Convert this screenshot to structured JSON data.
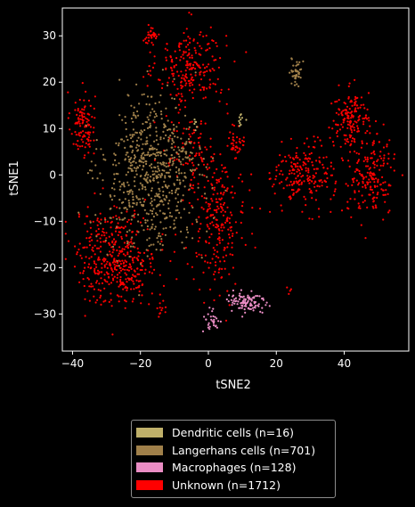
{
  "chart_data": {
    "type": "scatter",
    "xlabel": "tSNE2",
    "ylabel": "tSNE1",
    "xlim": [
      -43,
      59
    ],
    "ylim": [
      -38,
      36
    ],
    "xticks": [
      -40,
      -20,
      0,
      20,
      40
    ],
    "yticks": [
      -30,
      -20,
      -10,
      0,
      10,
      20,
      30
    ],
    "grid": false,
    "legend_position": "below",
    "series": [
      {
        "name": "Dendritic cells (n=16)",
        "color": "#bfb06a",
        "count": 16,
        "clusters": [
          {
            "center": [
              10,
              11.5
            ],
            "spread": [
              0.6,
              1.0
            ],
            "n": 10
          },
          {
            "center": [
              -4,
              10.5
            ],
            "spread": [
              0.8,
              0.8
            ],
            "n": 6
          }
        ]
      },
      {
        "name": "Langerhans cells (n=701)",
        "color": "#a0804a",
        "count": 701,
        "clusters": [
          {
            "center": [
              -17,
              0
            ],
            "spread": [
              7.0,
              8.0
            ],
            "n": 640
          },
          {
            "center": [
              26,
              22
            ],
            "spread": [
              0.8,
              1.6
            ],
            "n": 40
          },
          {
            "center": [
              -7,
              6
            ],
            "spread": [
              3.0,
              3.0
            ],
            "n": 21
          }
        ]
      },
      {
        "name": "Macrophages (n=128)",
        "color": "#ea8dc4",
        "count": 128,
        "clusters": [
          {
            "center": [
              11,
              -27.5
            ],
            "spread": [
              3.0,
              1.4
            ],
            "n": 100
          },
          {
            "center": [
              1,
              -31.5
            ],
            "spread": [
              1.3,
              1.4
            ],
            "n": 28
          }
        ]
      },
      {
        "name": "Unknown (n=1712)",
        "color": "#ff0000",
        "count": 1712,
        "clusters": [
          {
            "center": [
              -37,
              11
            ],
            "spread": [
              1.8,
              3.5
            ],
            "n": 110
          },
          {
            "center": [
              -5,
              23
            ],
            "spread": [
              5.0,
              4.5
            ],
            "n": 230
          },
          {
            "center": [
              -17,
              30
            ],
            "spread": [
              1.3,
              0.9
            ],
            "n": 35
          },
          {
            "center": [
              -27,
              -18
            ],
            "spread": [
              6.0,
              5.0
            ],
            "n": 420
          },
          {
            "center": [
              42,
              12
            ],
            "spread": [
              2.8,
              3.0
            ],
            "n": 150
          },
          {
            "center": [
              28,
              0
            ],
            "spread": [
              4.5,
              3.5
            ],
            "n": 210
          },
          {
            "center": [
              48,
              0
            ],
            "spread": [
              3.5,
              4.5
            ],
            "n": 190
          },
          {
            "center": [
              3,
              -10
            ],
            "spread": [
              4.0,
              7.0
            ],
            "n": 240
          },
          {
            "center": [
              -5,
              5
            ],
            "spread": [
              4.0,
              4.0
            ],
            "n": 80
          },
          {
            "center": [
              24,
              -25
            ],
            "spread": [
              0.4,
              0.5
            ],
            "n": 4
          },
          {
            "center": [
              -14,
              -29
            ],
            "spread": [
              0.6,
              1.0
            ],
            "n": 10
          },
          {
            "center": [
              8,
              7
            ],
            "spread": [
              1.5,
              1.5
            ],
            "n": 33
          }
        ]
      }
    ]
  }
}
